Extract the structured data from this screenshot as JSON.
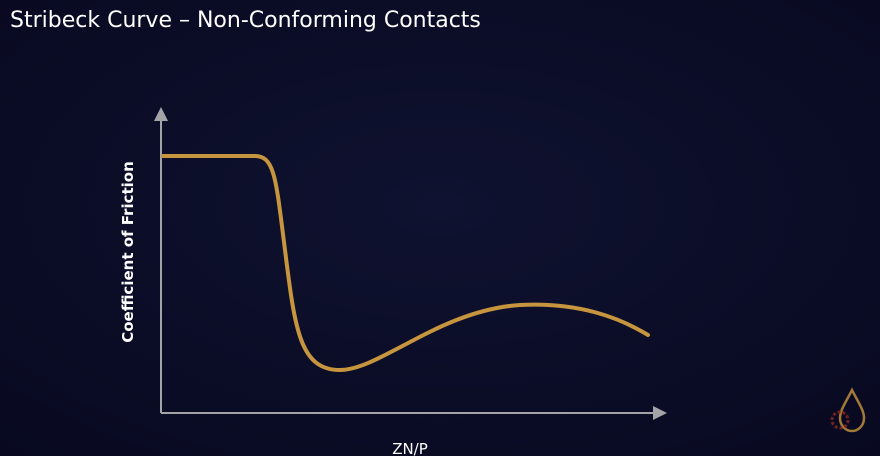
{
  "title": "Stribeck Curve – Non-Conforming Contacts",
  "y_axis_label": "Coefficient of Friction",
  "x_axis_label": "ZN/P"
}
